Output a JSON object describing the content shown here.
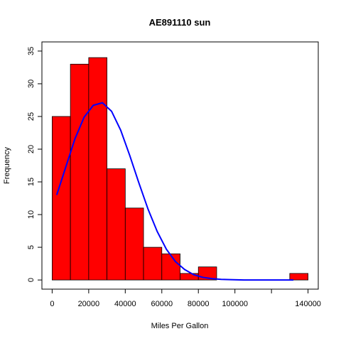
{
  "chart_data": {
    "type": "bar",
    "title": "AE891110 sun",
    "xlabel": "Miles Per Gallon",
    "ylabel": "Frequency",
    "bin_width": 10000,
    "bins": [
      {
        "start": 0,
        "end": 10000,
        "count": 25
      },
      {
        "start": 10000,
        "end": 20000,
        "count": 33
      },
      {
        "start": 20000,
        "end": 30000,
        "count": 34
      },
      {
        "start": 30000,
        "end": 40000,
        "count": 17
      },
      {
        "start": 40000,
        "end": 50000,
        "count": 11
      },
      {
        "start": 50000,
        "end": 60000,
        "count": 5
      },
      {
        "start": 60000,
        "end": 70000,
        "count": 4
      },
      {
        "start": 70000,
        "end": 80000,
        "count": 1
      },
      {
        "start": 80000,
        "end": 90000,
        "count": 2
      },
      {
        "start": 90000,
        "end": 100000,
        "count": 0
      },
      {
        "start": 100000,
        "end": 110000,
        "count": 0
      },
      {
        "start": 110000,
        "end": 120000,
        "count": 0
      },
      {
        "start": 120000,
        "end": 130000,
        "count": 0
      },
      {
        "start": 130000,
        "end": 140000,
        "count": 1
      }
    ],
    "normal_curve": {
      "x": [
        2500,
        7500,
        12500,
        17500,
        22500,
        27500,
        32500,
        37500,
        42500,
        47500,
        52500,
        57500,
        62500,
        67500,
        72500,
        77500,
        82500,
        87500,
        92500,
        97500,
        105000,
        115000,
        125000,
        132000
      ],
      "y": [
        13,
        17.3,
        21.6,
        24.9,
        26.7,
        27.1,
        25.8,
        22.9,
        19,
        14.8,
        10.8,
        7.4,
        4.7,
        2.8,
        1.6,
        0.8,
        0.4,
        0.2,
        0.1,
        0.05,
        0,
        0,
        0,
        0
      ],
      "color": "#0000ff"
    },
    "bar_color": "#ff0000",
    "x_ticks": [
      0,
      20000,
      40000,
      60000,
      80000,
      100000,
      140000
    ],
    "x_tick_marks": [
      0,
      20000,
      40000,
      60000,
      80000,
      100000,
      120000,
      140000
    ],
    "y_ticks": [
      0,
      5,
      10,
      15,
      20,
      25,
      30,
      35
    ],
    "xlim": [
      -5600,
      145600
    ],
    "ylim": [
      -1.4,
      36.4
    ],
    "grid": false
  }
}
